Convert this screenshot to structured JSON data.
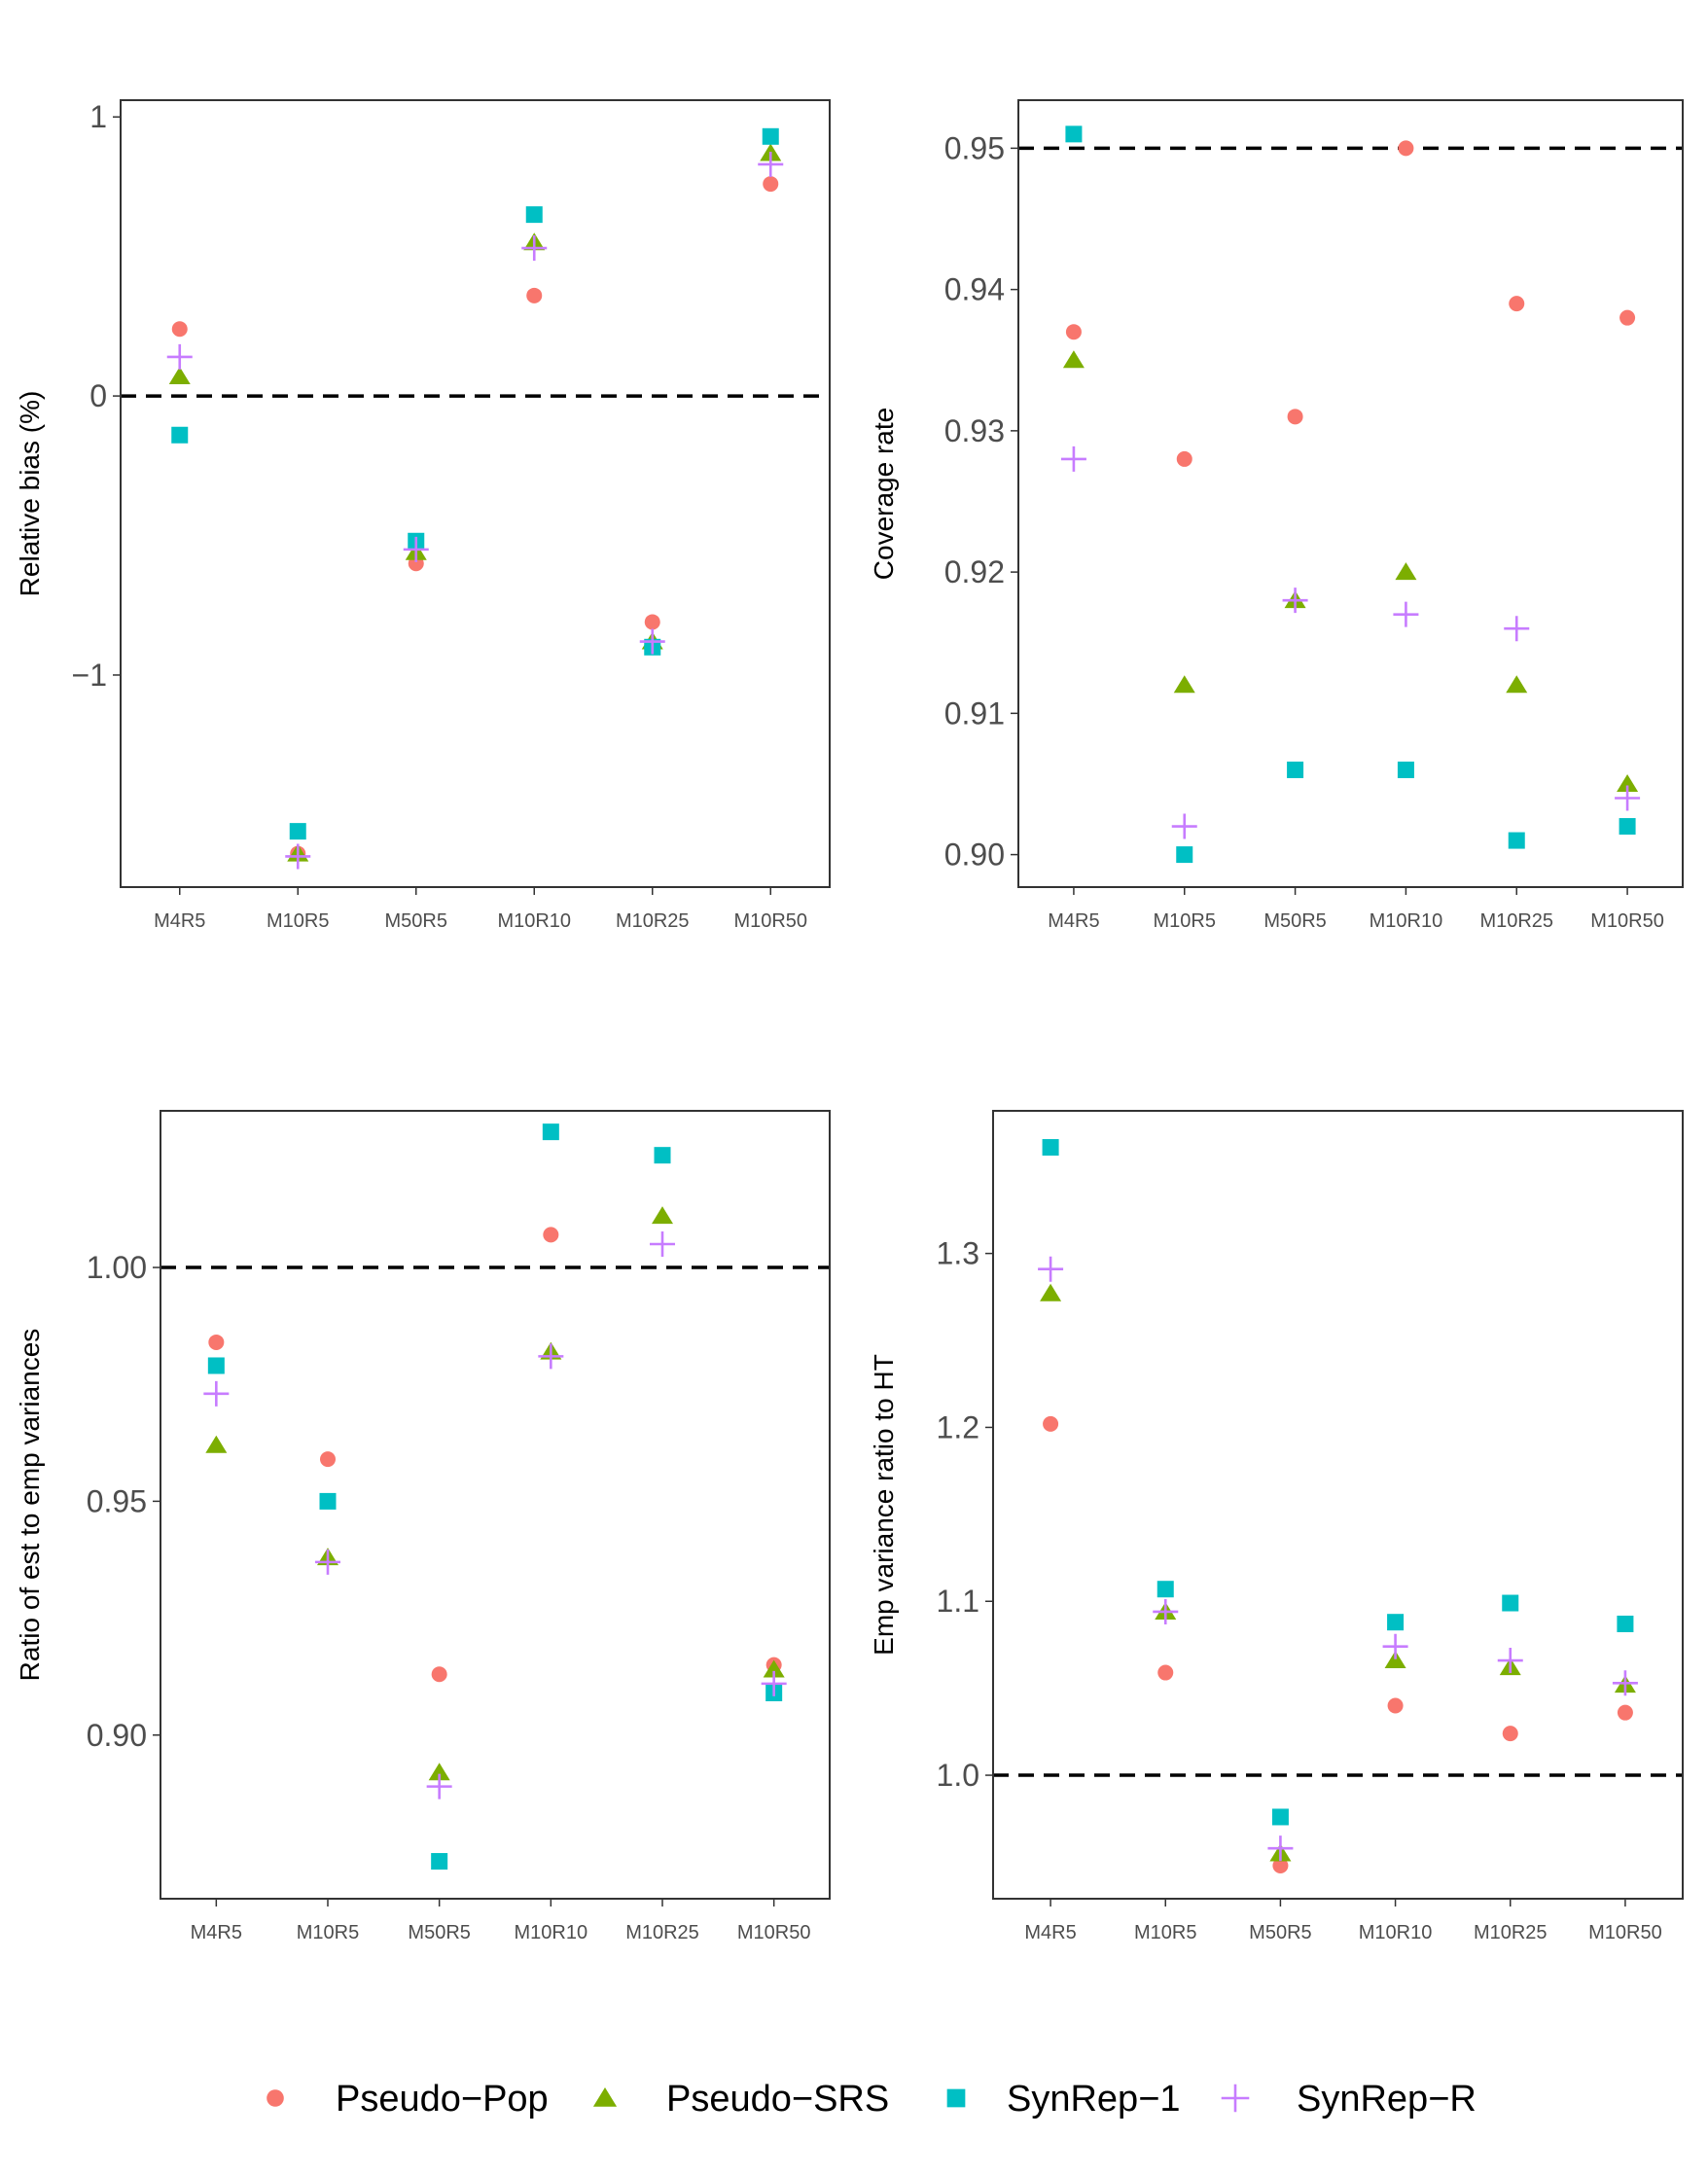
{
  "legend": {
    "items": [
      {
        "label": "Pseudo−Pop",
        "shape": "circle",
        "color": "#F8766D"
      },
      {
        "label": "Pseudo−SRS",
        "shape": "triangle",
        "color": "#7CAE00"
      },
      {
        "label": "SynRep−1",
        "shape": "square",
        "color": "#00BFC4"
      },
      {
        "label": "SynRep−R",
        "shape": "plus",
        "color": "#C77CFF"
      }
    ]
  },
  "chart_data": [
    {
      "type": "scatter",
      "title": "",
      "xlabel": "",
      "ylabel": "Relative bias (%)",
      "categories": [
        "M4R5",
        "M10R5",
        "M50R5",
        "M10R10",
        "M10R25",
        "M10R50"
      ],
      "ylim": [
        -1.76,
        1.06
      ],
      "yticks": [
        1,
        0,
        -1
      ],
      "ytick_labels": [
        "1",
        "0",
        "−1"
      ],
      "reference_line": 0,
      "grid": false,
      "series": [
        {
          "name": "Pseudo−Pop",
          "values": [
            0.24,
            -1.64,
            -0.6,
            0.36,
            -0.81,
            0.76
          ]
        },
        {
          "name": "Pseudo−SRS",
          "values": [
            0.07,
            -1.64,
            -0.56,
            0.55,
            -0.88,
            0.87
          ]
        },
        {
          "name": "SynRep−1",
          "values": [
            -0.14,
            -1.56,
            -0.52,
            0.65,
            -0.9,
            0.93
          ]
        },
        {
          "name": "SynRep−R",
          "values": [
            0.14,
            -1.65,
            -0.55,
            0.53,
            -0.88,
            0.83
          ]
        }
      ]
    },
    {
      "type": "scatter",
      "title": "",
      "xlabel": "",
      "ylabel": "Coverage rate",
      "categories": [
        "M4R5",
        "M10R5",
        "M50R5",
        "M10R10",
        "M10R25",
        "M10R50"
      ],
      "ylim": [
        0.8977,
        0.9534
      ],
      "yticks": [
        0.9,
        0.91,
        0.92,
        0.93,
        0.94,
        0.95
      ],
      "ytick_labels": [
        "0.90",
        "0.91",
        "0.92",
        "0.93",
        "0.94",
        "0.95"
      ],
      "reference_line": 0.95,
      "grid": false,
      "series": [
        {
          "name": "Pseudo−Pop",
          "values": [
            0.937,
            0.928,
            0.931,
            0.95,
            0.939,
            0.938
          ]
        },
        {
          "name": "Pseudo−SRS",
          "values": [
            0.935,
            0.912,
            0.918,
            0.92,
            0.912,
            0.905
          ]
        },
        {
          "name": "SynRep−1",
          "values": [
            0.951,
            0.9,
            0.906,
            0.906,
            0.901,
            0.902
          ]
        },
        {
          "name": "SynRep−R",
          "values": [
            0.928,
            0.902,
            0.918,
            0.917,
            0.916,
            0.904
          ]
        }
      ]
    },
    {
      "type": "scatter",
      "title": "",
      "xlabel": "",
      "ylabel": "Ratio of est to emp variances",
      "categories": [
        "M4R5",
        "M10R5",
        "M50R5",
        "M10R10",
        "M10R25",
        "M10R50"
      ],
      "ylim": [
        0.865,
        1.0335
      ],
      "yticks": [
        0.9,
        0.95,
        1.0
      ],
      "ytick_labels": [
        "0.90",
        "0.95",
        "1.00"
      ],
      "reference_line": 1.0,
      "grid": false,
      "series": [
        {
          "name": "Pseudo−Pop",
          "values": [
            0.984,
            0.959,
            0.913,
            1.007,
            1.024,
            0.915
          ]
        },
        {
          "name": "Pseudo−SRS",
          "values": [
            0.962,
            0.938,
            0.892,
            0.982,
            1.011,
            0.914
          ]
        },
        {
          "name": "SynRep−1",
          "values": [
            0.979,
            0.95,
            0.873,
            1.029,
            1.024,
            0.909
          ]
        },
        {
          "name": "SynRep−R",
          "values": [
            0.973,
            0.937,
            0.889,
            0.981,
            1.005,
            0.911
          ]
        }
      ]
    },
    {
      "type": "scatter",
      "title": "",
      "xlabel": "",
      "ylabel": "Emp variance ratio to HT",
      "categories": [
        "M4R5",
        "M10R5",
        "M50R5",
        "M10R10",
        "M10R25",
        "M10R50"
      ],
      "ylim": [
        0.929,
        1.382
      ],
      "yticks": [
        1.0,
        1.1,
        1.2,
        1.3
      ],
      "ytick_labels": [
        "1.0",
        "1.1",
        "1.2",
        "1.3"
      ],
      "reference_line": 1.0,
      "grid": false,
      "series": [
        {
          "name": "Pseudo−Pop",
          "values": [
            1.202,
            1.059,
            0.948,
            1.04,
            1.024,
            1.036
          ]
        },
        {
          "name": "Pseudo−SRS",
          "values": [
            1.277,
            1.094,
            0.955,
            1.066,
            1.062,
            1.052
          ]
        },
        {
          "name": "SynRep−1",
          "values": [
            1.361,
            1.107,
            0.976,
            1.088,
            1.099,
            1.087
          ]
        },
        {
          "name": "SynRep−R",
          "values": [
            1.291,
            1.094,
            0.958,
            1.074,
            1.066,
            1.053
          ]
        }
      ]
    }
  ]
}
